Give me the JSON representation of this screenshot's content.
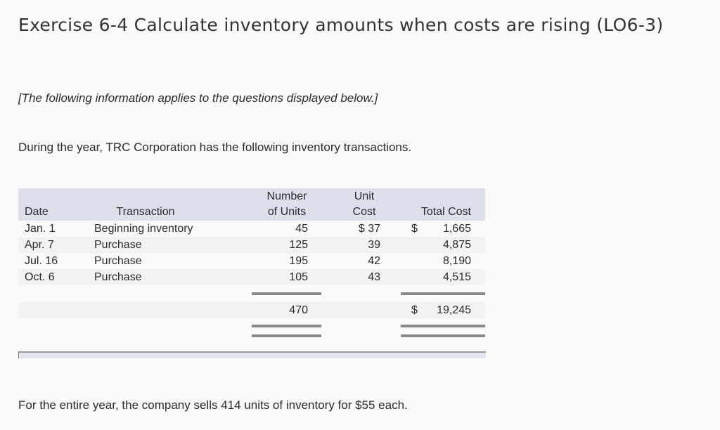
{
  "title": "Exercise 6-4 Calculate inventory amounts when costs are rising (LO6-3)",
  "note": "[The following information applies to the questions displayed below.]",
  "intro": "During the year, TRC Corporation has the following inventory transactions.",
  "table": {
    "headers": {
      "date": "Date",
      "transaction": "Transaction",
      "units_1": "Number",
      "units_2": "of Units",
      "cost_1": "Unit",
      "cost_2": "Cost",
      "total": "Total Cost"
    },
    "rows": [
      {
        "date": "Jan. 1",
        "transaction": "Beginning inventory",
        "units": "45",
        "cost": "$ 37",
        "total_symbol": "$",
        "total": "1,665"
      },
      {
        "date": "Apr. 7",
        "transaction": "Purchase",
        "units": "125",
        "cost": "39",
        "total_symbol": "",
        "total": "4,875"
      },
      {
        "date": "Jul. 16",
        "transaction": "Purchase",
        "units": "195",
        "cost": "42",
        "total_symbol": "",
        "total": "8,190"
      },
      {
        "date": "Oct. 6",
        "transaction": "Purchase",
        "units": "105",
        "cost": "43",
        "total_symbol": "",
        "total": "4,515"
      }
    ],
    "totals": {
      "units": "470",
      "total_symbol": "$",
      "total": "19,245"
    },
    "header_color": "#dde0ea"
  },
  "footer": {
    "pre": "For the entire year, the company sells ",
    "units": "414",
    "post": " units of inventory for $55 each."
  }
}
